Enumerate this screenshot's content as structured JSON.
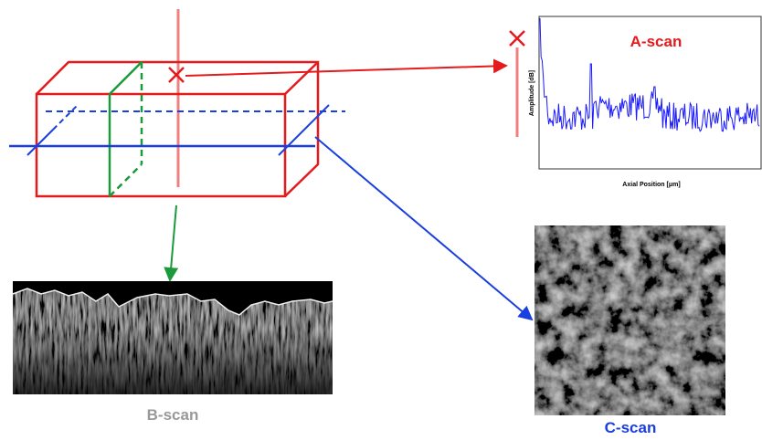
{
  "a_scan": {
    "title": "A-scan",
    "y_label": "Amplitude [dB]",
    "x_label": "Axial Position [μm]"
  },
  "b_scan": {
    "label": "B-scan"
  },
  "c_scan": {
    "label": "C-scan"
  }
}
